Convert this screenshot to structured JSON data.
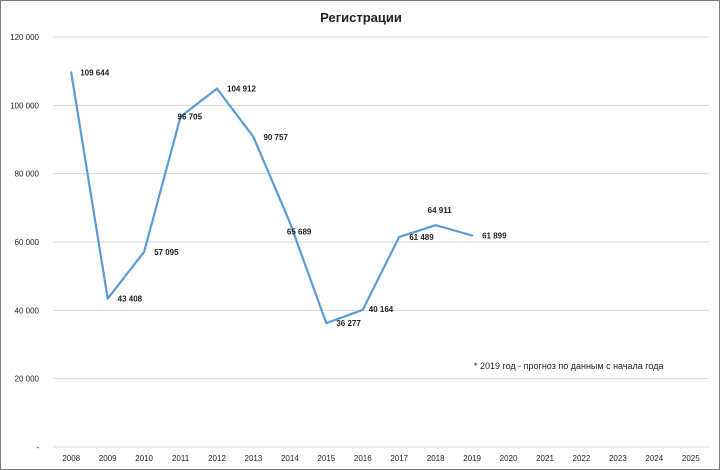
{
  "chart_data": {
    "type": "line",
    "title": "Регистрации",
    "xlabel": "",
    "ylabel": "",
    "categories": [
      "2008",
      "2009",
      "2010",
      "2011",
      "2012",
      "2013",
      "2014",
      "2015",
      "2016",
      "2017",
      "2018",
      "2019",
      "2020",
      "2021",
      "2022",
      "2023",
      "2024",
      "2025"
    ],
    "series": [
      {
        "values": [
          109644,
          43408,
          57095,
          96705,
          104912,
          90757,
          65689,
          36277,
          40164,
          61489,
          64911,
          61899,
          null,
          null,
          null,
          null,
          null,
          null
        ],
        "data_labels": [
          "109 644",
          "43 408",
          "57 095",
          "96 705",
          "104 912",
          "90 757",
          "65 689",
          "36 277",
          "40 164",
          "61 489",
          "64 911",
          "61 899"
        ]
      }
    ],
    "ylim": [
      0,
      120000
    ],
    "yticks": [
      0,
      20000,
      40000,
      60000,
      80000,
      100000,
      120000
    ],
    "ytick_labels": [
      "-",
      "20 000",
      "40 000",
      "60 000",
      "80 000",
      "100 000",
      "120 000"
    ],
    "grid": true,
    "annotation": "* 2019  год - прогноз по данным с начала года",
    "colors": {
      "line": "#5b9bd5",
      "grid": "#d9d9d9",
      "text": "#222222"
    }
  }
}
